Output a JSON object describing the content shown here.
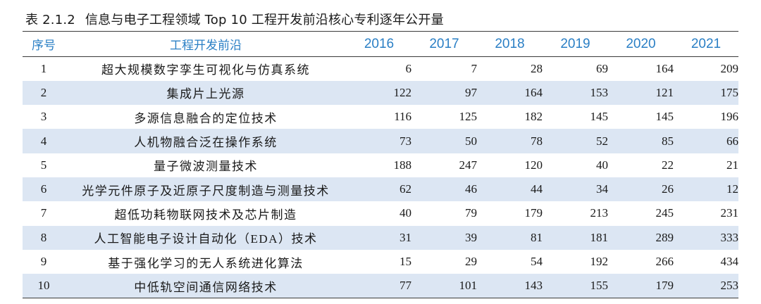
{
  "caption": {
    "number": "表 2.1.2",
    "title": "信息与电子工程领域 Top 10 工程开发前沿核心专利逐年公开量"
  },
  "table": {
    "headers": {
      "index": "序号",
      "name": "工程开发前沿",
      "years": [
        "2016",
        "2017",
        "2018",
        "2019",
        "2020",
        "2021"
      ]
    },
    "rows": [
      {
        "index": "1",
        "name": "超大规模数字孪生可视化与仿真系统",
        "values": [
          "6",
          "7",
          "28",
          "69",
          "164",
          "209"
        ]
      },
      {
        "index": "2",
        "name": "集成片上光源",
        "values": [
          "122",
          "97",
          "164",
          "153",
          "121",
          "175"
        ]
      },
      {
        "index": "3",
        "name": "多源信息融合的定位技术",
        "values": [
          "116",
          "125",
          "182",
          "145",
          "145",
          "196"
        ]
      },
      {
        "index": "4",
        "name": "人机物融合泛在操作系统",
        "values": [
          "73",
          "50",
          "78",
          "52",
          "85",
          "66"
        ]
      },
      {
        "index": "5",
        "name": "量子微波测量技术",
        "values": [
          "188",
          "247",
          "120",
          "40",
          "22",
          "21"
        ]
      },
      {
        "index": "6",
        "name": "光学元件原子及近原子尺度制造与测量技术",
        "values": [
          "62",
          "46",
          "44",
          "34",
          "26",
          "12"
        ]
      },
      {
        "index": "7",
        "name": "超低功耗物联网技术及芯片制造",
        "values": [
          "40",
          "79",
          "179",
          "213",
          "245",
          "231"
        ]
      },
      {
        "index": "8",
        "name": "人工智能电子设计自动化（EDA）技术",
        "values": [
          "31",
          "39",
          "81",
          "181",
          "289",
          "333"
        ]
      },
      {
        "index": "9",
        "name": "基于强化学习的无人系统进化算法",
        "values": [
          "15",
          "29",
          "54",
          "192",
          "266",
          "434"
        ]
      },
      {
        "index": "10",
        "name": "中低轨空间通信网络技术",
        "values": [
          "77",
          "101",
          "143",
          "155",
          "179",
          "253"
        ]
      }
    ]
  },
  "colors": {
    "header_text": "#2a7fc5",
    "stripe": "#dce6f3",
    "rule": "#3a3a3a"
  }
}
